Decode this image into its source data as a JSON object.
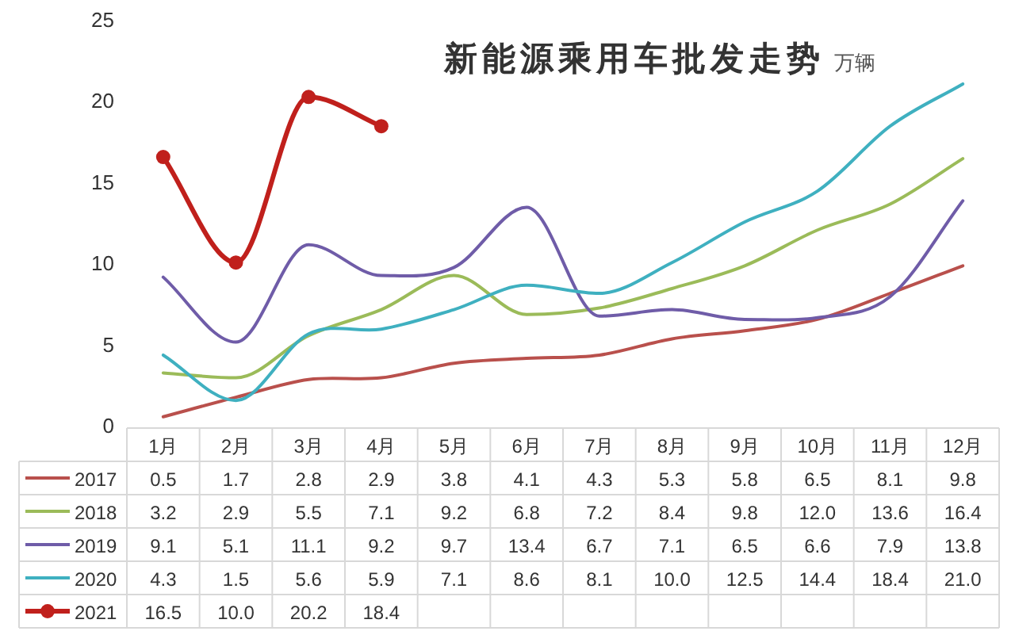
{
  "chart_data": {
    "type": "line",
    "title": "新能源乘用车批发走势",
    "subtitle": "万辆",
    "categories": [
      "1月",
      "2月",
      "3月",
      "4月",
      "5月",
      "6月",
      "7月",
      "8月",
      "9月",
      "10月",
      "11月",
      "12月"
    ],
    "series": [
      {
        "name": "2017",
        "color": "#b9504c",
        "values": [
          0.5,
          1.7,
          2.8,
          2.9,
          3.8,
          4.1,
          4.3,
          5.3,
          5.8,
          6.5,
          8.1,
          9.8
        ],
        "value_labels": [
          "0.5",
          "1.7",
          "2.8",
          "2.9",
          "3.8",
          "4.1",
          "4.3",
          "5.3",
          "5.8",
          "6.5",
          "8.1",
          "9.8"
        ]
      },
      {
        "name": "2018",
        "color": "#9bbb59",
        "values": [
          3.2,
          2.9,
          5.5,
          7.1,
          9.2,
          6.8,
          7.2,
          8.4,
          9.8,
          12.0,
          13.6,
          16.4
        ],
        "value_labels": [
          "3.2",
          "2.9",
          "5.5",
          "7.1",
          "9.2",
          "6.8",
          "7.2",
          "8.4",
          "9.8",
          "12.0",
          "13.6",
          "16.4"
        ]
      },
      {
        "name": "2019",
        "color": "#6f5ca8",
        "values": [
          9.1,
          5.1,
          11.1,
          9.2,
          9.7,
          13.4,
          6.7,
          7.1,
          6.5,
          6.6,
          7.9,
          13.8
        ],
        "value_labels": [
          "9.1",
          "5.1",
          "11.1",
          "9.2",
          "9.7",
          "13.4",
          "6.7",
          "7.1",
          "6.5",
          "6.6",
          "7.9",
          "13.8"
        ]
      },
      {
        "name": "2020",
        "color": "#3fb0c0",
        "values": [
          4.3,
          1.5,
          5.6,
          5.9,
          7.1,
          8.6,
          8.1,
          10.0,
          12.5,
          14.4,
          18.4,
          21.0
        ],
        "value_labels": [
          "4.3",
          "1.5",
          "5.6",
          "5.9",
          "7.1",
          "8.6",
          "8.1",
          "10.0",
          "12.5",
          "14.4",
          "18.4",
          "21.0"
        ]
      },
      {
        "name": "2021",
        "color": "#c0201c",
        "marker": "circle",
        "values": [
          16.5,
          10.0,
          20.2,
          18.4,
          null,
          null,
          null,
          null,
          null,
          null,
          null,
          null
        ],
        "value_labels": [
          "16.5",
          "10.0",
          "20.2",
          "18.4",
          null,
          null,
          null,
          null,
          null,
          null,
          null,
          null
        ]
      }
    ],
    "ylim": [
      0,
      25
    ],
    "yticks": [
      0,
      5,
      10,
      15,
      20,
      25
    ],
    "grid": false,
    "legend": "bottom",
    "line_style": "solid"
  }
}
